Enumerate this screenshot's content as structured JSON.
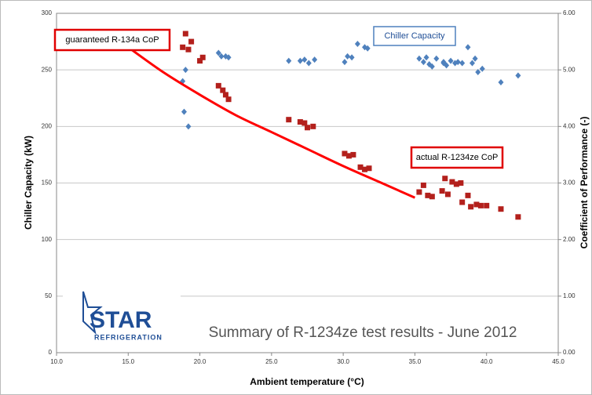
{
  "chart_data": {
    "type": "scatter",
    "title": "Summary of R-1234ze test results - June 2012",
    "x_label": "Ambient temperature (°C)",
    "y_label": "Chiller Capacity (kW)",
    "y2_label": "Coefficient of Performance (-)",
    "logo": {
      "name": "STAR",
      "tagline": "REFRIGERATION"
    },
    "xlim": [
      10,
      45
    ],
    "xticks": [
      {
        "value": 10,
        "label": "10.0"
      },
      {
        "value": 15,
        "label": "15.0"
      },
      {
        "value": 20,
        "label": "20.0"
      },
      {
        "value": 25,
        "label": "25.0"
      },
      {
        "value": 30,
        "label": "30.0"
      },
      {
        "value": 35,
        "label": "35.0"
      },
      {
        "value": 40,
        "label": "40.0"
      },
      {
        "value": 45,
        "label": "45.0"
      }
    ],
    "ylim": [
      0,
      300
    ],
    "yticks": [
      0,
      50,
      100,
      150,
      200,
      250,
      300
    ],
    "y2lim": [
      0,
      6
    ],
    "y2ticks": [
      {
        "value": 0,
        "label": "0.00"
      },
      {
        "value": 1,
        "label": "1.00"
      },
      {
        "value": 2,
        "label": "2.00"
      },
      {
        "value": 3,
        "label": "3.00"
      },
      {
        "value": 4,
        "label": "4.00"
      },
      {
        "value": 5,
        "label": "5.00"
      },
      {
        "value": 6,
        "label": "6.00"
      }
    ],
    "grid": true,
    "series": [
      {
        "name": "Chiller Capacity",
        "color": "#4f81bd",
        "marker": "diamond",
        "axis": "y",
        "x": [
          18.8,
          18.9,
          19,
          19.2,
          21.3,
          21.5,
          21.8,
          22,
          26.2,
          27,
          27.3,
          27.6,
          28,
          30.1,
          30.3,
          30.6,
          31,
          31.5,
          31.7,
          35.3,
          35.6,
          35.8,
          36,
          36.2,
          36.5,
          37,
          37,
          37.2,
          37.5,
          37.8,
          38,
          38.3,
          38.7,
          39,
          39.2,
          39.4,
          39.7,
          41,
          42.2
        ],
        "values": [
          240,
          213,
          250,
          200,
          265,
          262,
          262,
          261,
          258,
          258,
          259,
          256,
          259,
          257,
          262,
          261,
          273,
          270,
          269,
          260,
          257,
          261,
          255,
          253,
          260,
          257,
          256,
          254,
          258,
          256,
          257,
          256,
          270,
          256,
          260,
          248,
          251,
          239,
          245
        ]
      },
      {
        "name": "actual R-1234ze CoP",
        "color": "#b3201c",
        "marker": "square",
        "axis": "y2",
        "x": [
          18.8,
          19,
          19.2,
          19.4,
          20,
          20.2,
          21.3,
          21.6,
          21.8,
          22,
          26.2,
          27,
          27.3,
          27.5,
          27.9,
          30.1,
          30.4,
          30.7,
          31.2,
          31.5,
          31.8,
          35.3,
          35.6,
          35.9,
          36.2,
          36.9,
          37.1,
          37.3,
          37.6,
          37.9,
          38.2,
          38.3,
          38.7,
          38.9,
          39.3,
          39.6,
          40,
          41,
          42.2
        ],
        "values": [
          5.4,
          5.64,
          5.36,
          5.5,
          5.16,
          5.22,
          4.72,
          4.64,
          4.56,
          4.48,
          4.12,
          4.08,
          4.06,
          3.98,
          4.0,
          3.52,
          3.48,
          3.5,
          3.28,
          3.24,
          3.26,
          2.84,
          2.96,
          2.78,
          2.76,
          2.86,
          3.08,
          2.8,
          3.02,
          2.98,
          3.0,
          2.66,
          2.78,
          2.58,
          2.62,
          2.6,
          2.6,
          2.54,
          2.4
        ]
      },
      {
        "name": "guaranteed R-134a CoP",
        "color": "#ff0000",
        "marker": "line",
        "axis": "y2",
        "x": [
          15,
          17.5,
          20,
          22.5,
          25,
          27.5,
          30,
          32.5,
          35
        ],
        "values": [
          5.4,
          4.95,
          4.56,
          4.2,
          3.9,
          3.6,
          3.3,
          3.02,
          2.74
        ]
      }
    ]
  }
}
